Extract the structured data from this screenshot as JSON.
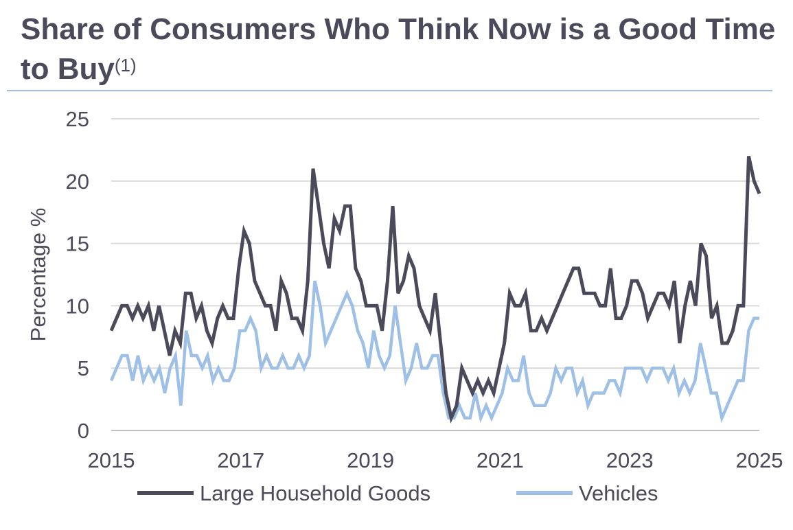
{
  "title_main": "Share of Consumers Who Think Now is a Good Time to Buy",
  "title_superscript": "(1)",
  "chart_data": {
    "type": "line",
    "title": "Share of Consumers Who Think Now is a Good Time to Buy(1)",
    "xlabel": "",
    "ylabel": "Percentage %",
    "ylim": [
      0,
      25
    ],
    "yticks": [
      "0",
      "5",
      "10",
      "15",
      "20",
      "25"
    ],
    "xlim": [
      2015,
      2025
    ],
    "xticks": [
      "2015",
      "2017",
      "2019",
      "2021",
      "2023",
      "2025"
    ],
    "grid": true,
    "legend_position": "bottom",
    "x_start": 2015,
    "x_step": 0.0833,
    "series": [
      {
        "name": "Large Household Goods",
        "color": "#4a4a5a",
        "values": [
          8,
          9,
          10,
          10,
          9,
          10,
          9,
          10,
          8,
          10,
          8,
          6,
          8,
          7,
          11,
          11,
          9,
          10,
          8,
          7,
          9,
          10,
          9,
          9,
          13,
          16,
          15,
          12,
          11,
          10,
          10,
          8,
          12,
          11,
          9,
          9,
          8,
          12,
          21,
          18,
          15,
          13,
          17,
          16,
          18,
          18,
          13,
          12,
          10,
          10,
          10,
          8,
          12,
          18,
          11,
          12,
          14,
          13,
          10,
          9,
          8,
          11,
          7,
          3,
          1,
          2,
          5,
          4,
          3,
          4,
          3,
          4,
          3,
          5,
          7,
          11,
          10,
          10,
          11,
          8,
          8,
          9,
          8,
          9,
          10,
          11,
          12,
          13,
          13,
          11,
          11,
          11,
          10,
          10,
          13,
          9,
          9,
          10,
          12,
          12,
          11,
          9,
          10,
          11,
          11,
          10,
          12,
          7,
          10,
          12,
          10,
          15,
          14,
          9,
          10,
          7,
          7,
          8,
          10,
          10,
          22,
          20,
          19
        ]
      },
      {
        "name": "Vehicles",
        "color": "#9ec0e6",
        "values": [
          4,
          5,
          6,
          6,
          4,
          6,
          4,
          5,
          4,
          5,
          3,
          5,
          6,
          2,
          8,
          6,
          6,
          5,
          6,
          4,
          5,
          4,
          4,
          5,
          8,
          8,
          9,
          8,
          5,
          6,
          5,
          5,
          6,
          5,
          5,
          6,
          5,
          6,
          12,
          10,
          7,
          8,
          9,
          10,
          11,
          10,
          8,
          7,
          5,
          8,
          6,
          5,
          6,
          10,
          7,
          4,
          5,
          7,
          5,
          5,
          6,
          6,
          3,
          1,
          1,
          2,
          1,
          1,
          3,
          1,
          2,
          1,
          2,
          3,
          5,
          4,
          4,
          6,
          3,
          2,
          2,
          2,
          3,
          5,
          4,
          5,
          5,
          3,
          4,
          2,
          3,
          3,
          3,
          4,
          4,
          3,
          5,
          5,
          5,
          5,
          4,
          5,
          5,
          5,
          4,
          5,
          3,
          4,
          3,
          4,
          7,
          5,
          3,
          3,
          1,
          2,
          3,
          4,
          4,
          8,
          9,
          9
        ]
      }
    ]
  }
}
